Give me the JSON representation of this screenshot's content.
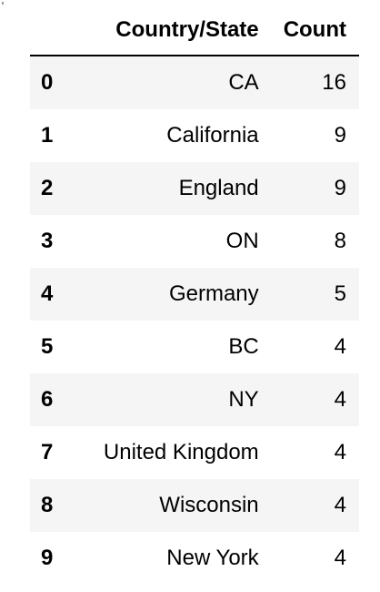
{
  "table": {
    "columns": {
      "index": "",
      "country_state": "Country/State",
      "count": "Count"
    },
    "rows": [
      {
        "index": "0",
        "country_state": "CA",
        "count": "16"
      },
      {
        "index": "1",
        "country_state": "California",
        "count": "9"
      },
      {
        "index": "2",
        "country_state": "England",
        "count": "9"
      },
      {
        "index": "3",
        "country_state": "ON",
        "count": "8"
      },
      {
        "index": "4",
        "country_state": "Germany",
        "count": "5"
      },
      {
        "index": "5",
        "country_state": "BC",
        "count": "4"
      },
      {
        "index": "6",
        "country_state": "NY",
        "count": "4"
      },
      {
        "index": "7",
        "country_state": "United Kingdom",
        "count": "4"
      },
      {
        "index": "8",
        "country_state": "Wisconsin",
        "count": "4"
      },
      {
        "index": "9",
        "country_state": "New York",
        "count": "4"
      }
    ]
  },
  "colors": {
    "text": "#000000",
    "striped_row": "#f5f5f5",
    "background": "#ffffff"
  }
}
